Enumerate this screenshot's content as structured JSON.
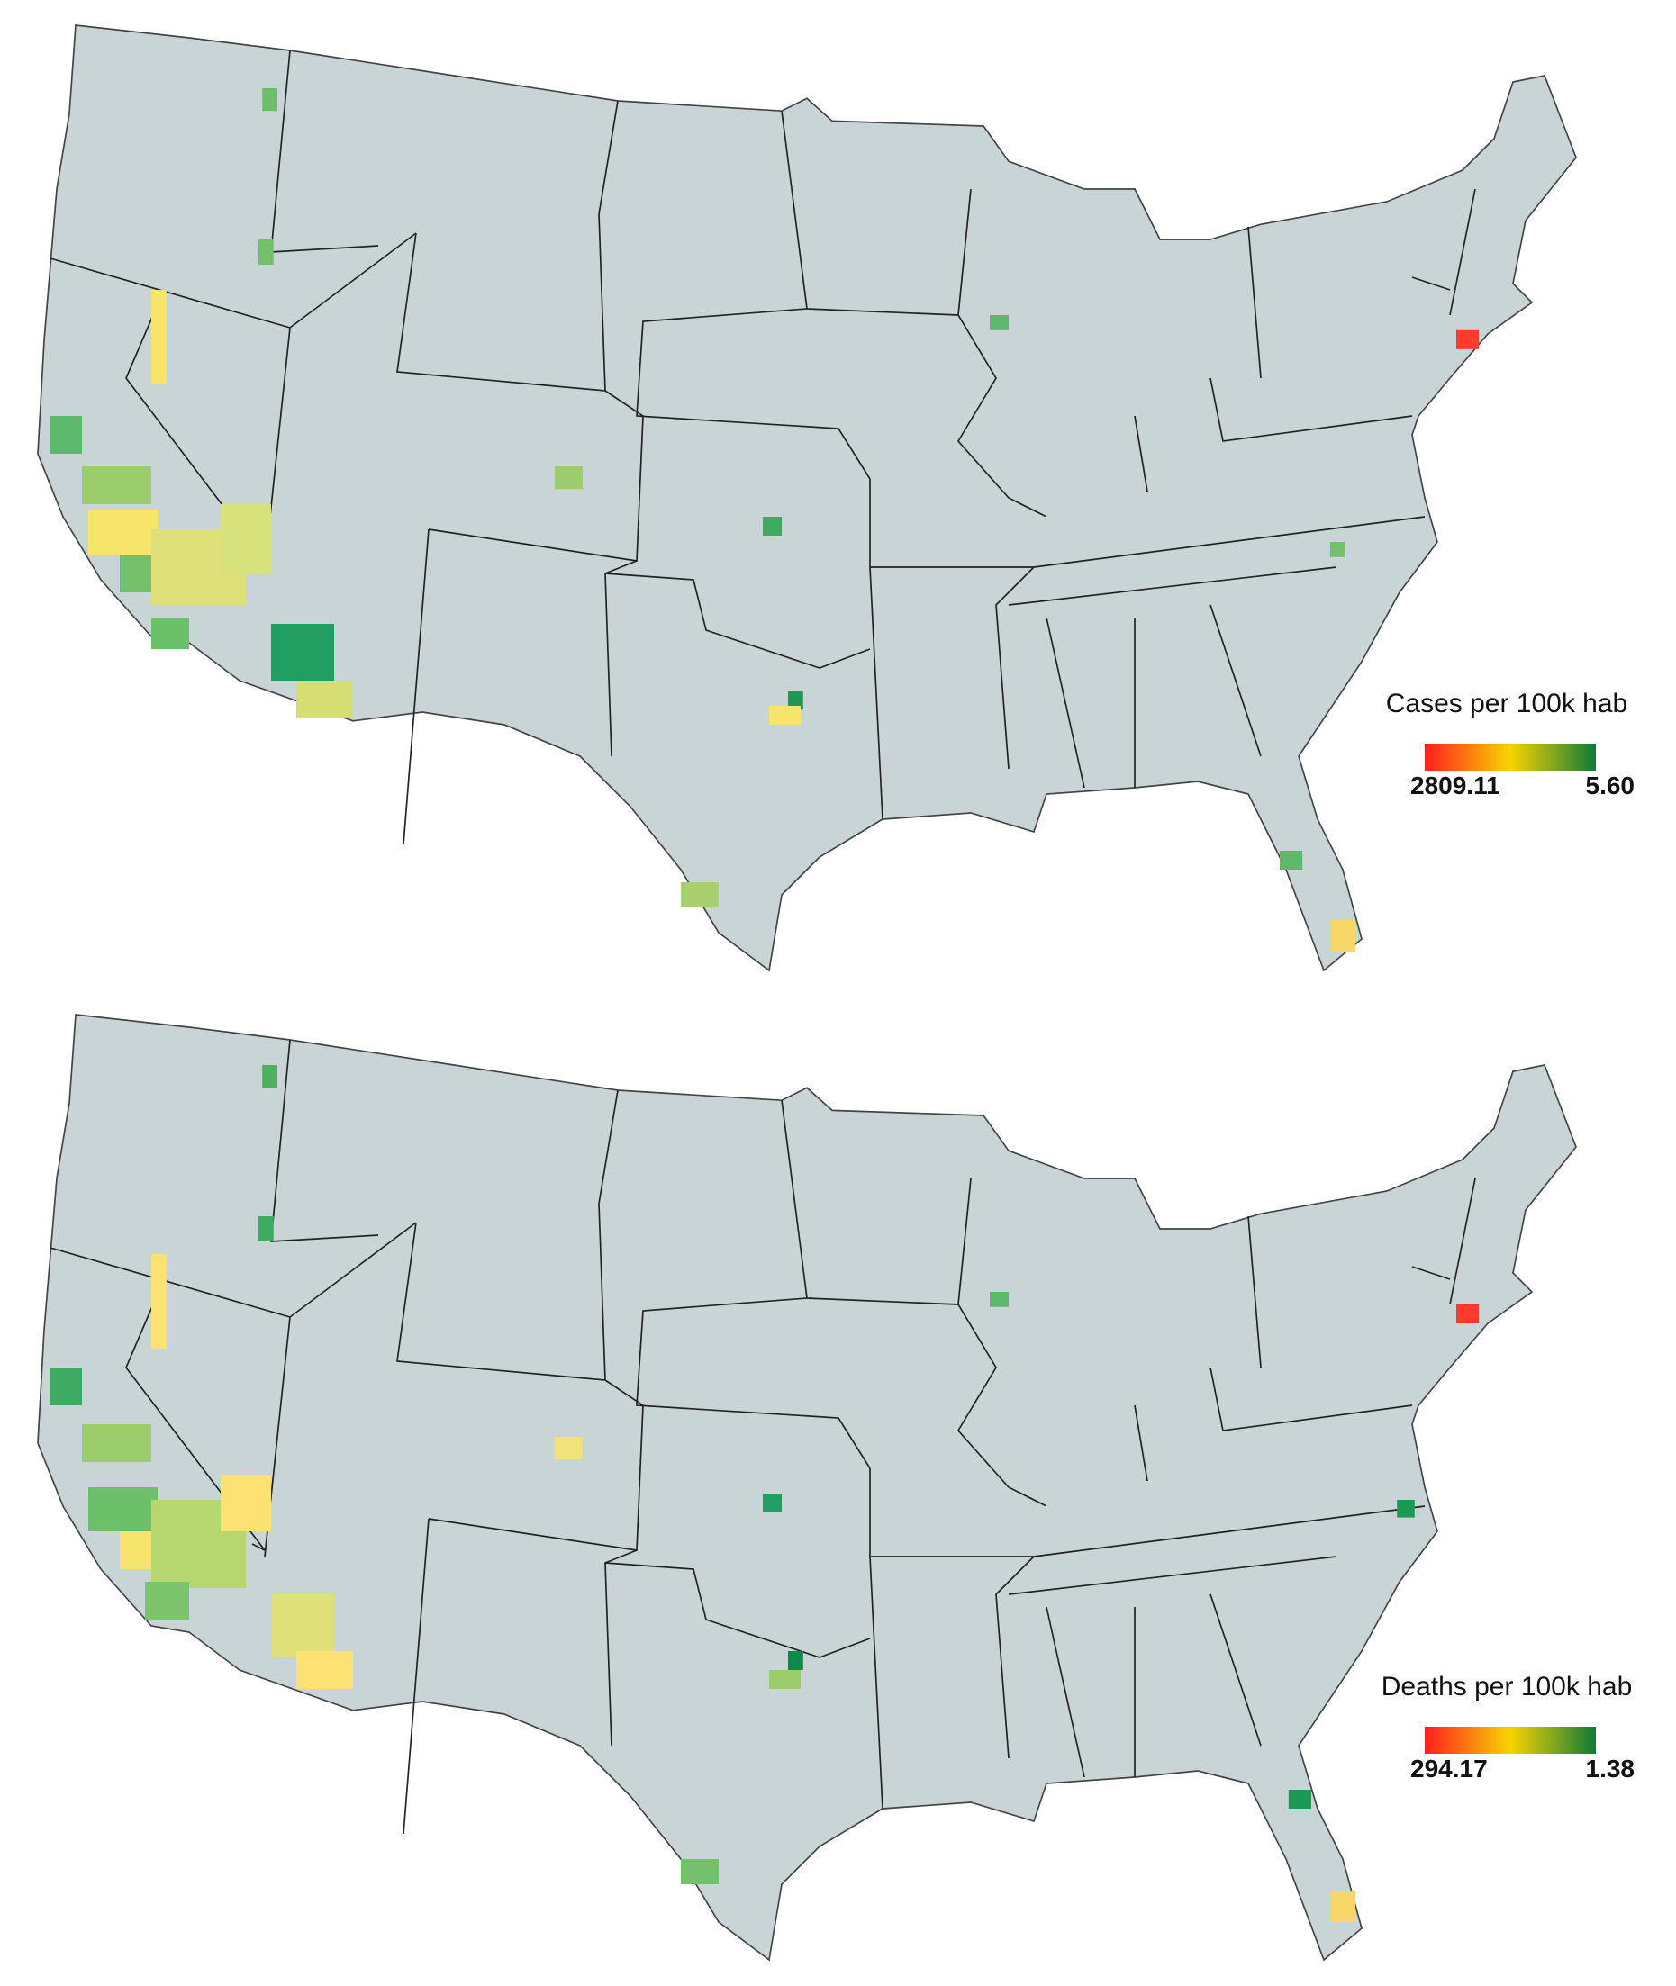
{
  "maps": [
    {
      "legend": {
        "title": "Cases per 100k hab",
        "max": 2809.11,
        "min": {
          "value": 5.6,
          "label": "5.60"
        },
        "colors": [
          "#ff1f1f",
          "#f7d400",
          "#107a3a"
        ]
      }
    },
    {
      "legend": {
        "title": "Deaths per 100k hab",
        "max": 294.17,
        "min": 1.38,
        "colors": [
          "#ff1f1f",
          "#f7d400",
          "#107a3a"
        ]
      }
    }
  ]
}
